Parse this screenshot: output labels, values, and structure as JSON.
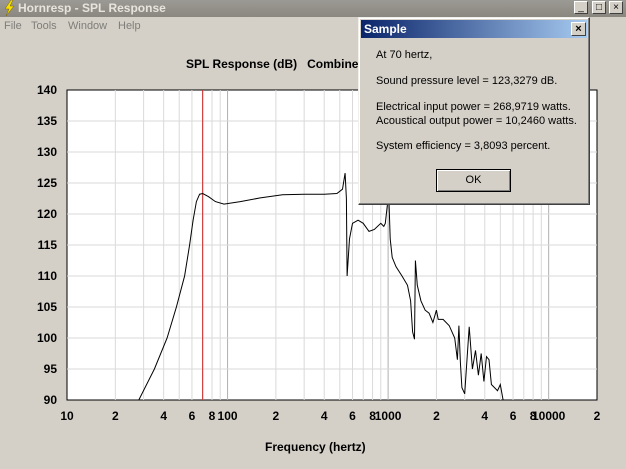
{
  "window": {
    "title": "Hornresp - SPL Response",
    "controls": [
      "_",
      "□",
      "×"
    ]
  },
  "menu": [
    "File",
    "Tools",
    "Window",
    "Help"
  ],
  "chart_title": "SPL Response (dB)   Combined",
  "chart_data": {
    "type": "line",
    "title": "SPL Response (dB)   Combined",
    "xlabel": "Frequency (hertz)",
    "ylabel": "",
    "x_scale": "log",
    "xlim": [
      10,
      20000
    ],
    "ylim": [
      90,
      140
    ],
    "x_tick_labels": [
      "10",
      "2",
      "4",
      "6",
      "8",
      "100",
      "2",
      "4",
      "6",
      "8",
      "1000",
      "2",
      "4",
      "6",
      "8",
      "10000",
      "2"
    ],
    "y_tick_labels": [
      "140",
      "135",
      "130",
      "125",
      "120",
      "115",
      "110",
      "105",
      "100",
      "95",
      "90"
    ],
    "grid": true,
    "marker_frequency": 70,
    "series": [
      {
        "points": [
          [
            28,
            90
          ],
          [
            35,
            95
          ],
          [
            42,
            100
          ],
          [
            48,
            105
          ],
          [
            54,
            110
          ],
          [
            58,
            115
          ],
          [
            61,
            119
          ],
          [
            64,
            122
          ],
          [
            67,
            123.2
          ],
          [
            70,
            123.3
          ],
          [
            76,
            122.8
          ],
          [
            84,
            122
          ],
          [
            95,
            121.6
          ],
          [
            120,
            122
          ],
          [
            160,
            122.6
          ],
          [
            220,
            123.1
          ],
          [
            300,
            123.2
          ],
          [
            400,
            123.2
          ],
          [
            480,
            123.3
          ],
          [
            520,
            124
          ],
          [
            540,
            126.6
          ],
          [
            550,
            122.5
          ],
          [
            555,
            110
          ],
          [
            575,
            116
          ],
          [
            600,
            118.5
          ],
          [
            650,
            119
          ],
          [
            700,
            118.5
          ],
          [
            760,
            117.2
          ],
          [
            820,
            117.5
          ],
          [
            900,
            118.5
          ],
          [
            940,
            118
          ],
          [
            960,
            118.5
          ],
          [
            990,
            121.5
          ],
          [
            1010,
            123
          ],
          [
            1030,
            116
          ],
          [
            1060,
            113
          ],
          [
            1120,
            111.5
          ],
          [
            1220,
            110
          ],
          [
            1320,
            108.5
          ],
          [
            1380,
            106
          ],
          [
            1420,
            101
          ],
          [
            1460,
            99.8
          ],
          [
            1480,
            112.5
          ],
          [
            1520,
            108.5
          ],
          [
            1600,
            106
          ],
          [
            1700,
            104.5
          ],
          [
            1800,
            104
          ],
          [
            1900,
            102.5
          ],
          [
            2000,
            104.5
          ],
          [
            2050,
            103
          ],
          [
            2200,
            103
          ],
          [
            2400,
            102
          ],
          [
            2600,
            100
          ],
          [
            2700,
            96.5
          ],
          [
            2760,
            102
          ],
          [
            2820,
            96
          ],
          [
            2880,
            92
          ],
          [
            3000,
            91
          ],
          [
            3200,
            101.8
          ],
          [
            3350,
            95
          ],
          [
            3500,
            98
          ],
          [
            3650,
            94
          ],
          [
            3800,
            97.5
          ],
          [
            3950,
            93
          ],
          [
            4100,
            97
          ],
          [
            4250,
            96.5
          ],
          [
            4400,
            92.5
          ],
          [
            4600,
            92
          ],
          [
            4800,
            91.5
          ],
          [
            5000,
            92.5
          ],
          [
            5200,
            90
          ]
        ]
      }
    ]
  },
  "dialog": {
    "title": "Sample",
    "lines": [
      "At 70 hertz,",
      "Sound pressure level = 123,3279 dB.",
      "Electrical input power = 268,9719 watts.",
      "Acoustical output power = 10,2460 watts.",
      "System efficiency = 3,8093 percent."
    ],
    "ok_label": "OK",
    "close_label": "×"
  },
  "colors": {
    "curve": "#000000",
    "marker": "#cc2020",
    "grid": "#c8c8c8",
    "plot_bg": "#ffffff"
  }
}
